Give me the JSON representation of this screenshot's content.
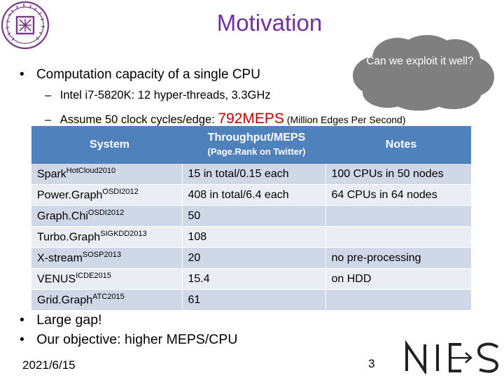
{
  "slide": {
    "title": "Motivation",
    "callout": "Can we exploit it well?",
    "bullet1": "Computation capacity of a single CPU",
    "sub1": "Intel i7-5820K: 12 hyper-threads, 3.3GHz",
    "sub2_prefix": "Assume 50 clock cycles/edge: ",
    "sub2_value": "792MEPS",
    "sub2_suffix": " (Million Edges Per Second)",
    "bullet2": "Large gap!",
    "bullet3": "Our objective: higher MEPS/CPU",
    "date": "2021/6/15",
    "page_number": "3",
    "bullet_glyph": "•",
    "dash_glyph": "–"
  },
  "table": {
    "headers": {
      "system": "System",
      "throughput": "Throughput/MEPS",
      "throughput_sub": "(Page.Rank on Twitter)",
      "notes": "Notes"
    },
    "rows": [
      {
        "system": "Spark",
        "venue": "HotCloud2010",
        "throughput": "15 in total/0.15 each",
        "notes": "100 CPUs in 50 nodes"
      },
      {
        "system": "Power.Graph",
        "venue": "OSDI2012",
        "throughput": "408 in total/6.4 each",
        "notes": "64 CPUs in 64 nodes"
      },
      {
        "system": "Graph.Chi",
        "venue": "OSDI2012",
        "throughput": "50",
        "notes": ""
      },
      {
        "system": "Turbo.Graph",
        "venue": "SIGKDD2013",
        "throughput": "108",
        "notes": ""
      },
      {
        "system": "X-stream",
        "venue": "SOSP2013",
        "throughput": "20",
        "notes": "no pre-processing"
      },
      {
        "system": "VENUS",
        "venue": "ICDE2015",
        "throughput": "15.4",
        "notes": "on HDD"
      },
      {
        "system": "Grid.Graph",
        "venue": "ATC2015",
        "throughput": "61",
        "notes": ""
      }
    ]
  },
  "logos": {
    "left": "university-seal",
    "right_letters": "NICS"
  },
  "colors": {
    "title": "#7030a0",
    "callout_fill": "#7f7f7f",
    "highlight": "#c00000",
    "header_fill": "#4f81bd",
    "row_odd": "#d0d8e8",
    "row_even": "#e9edf4"
  }
}
